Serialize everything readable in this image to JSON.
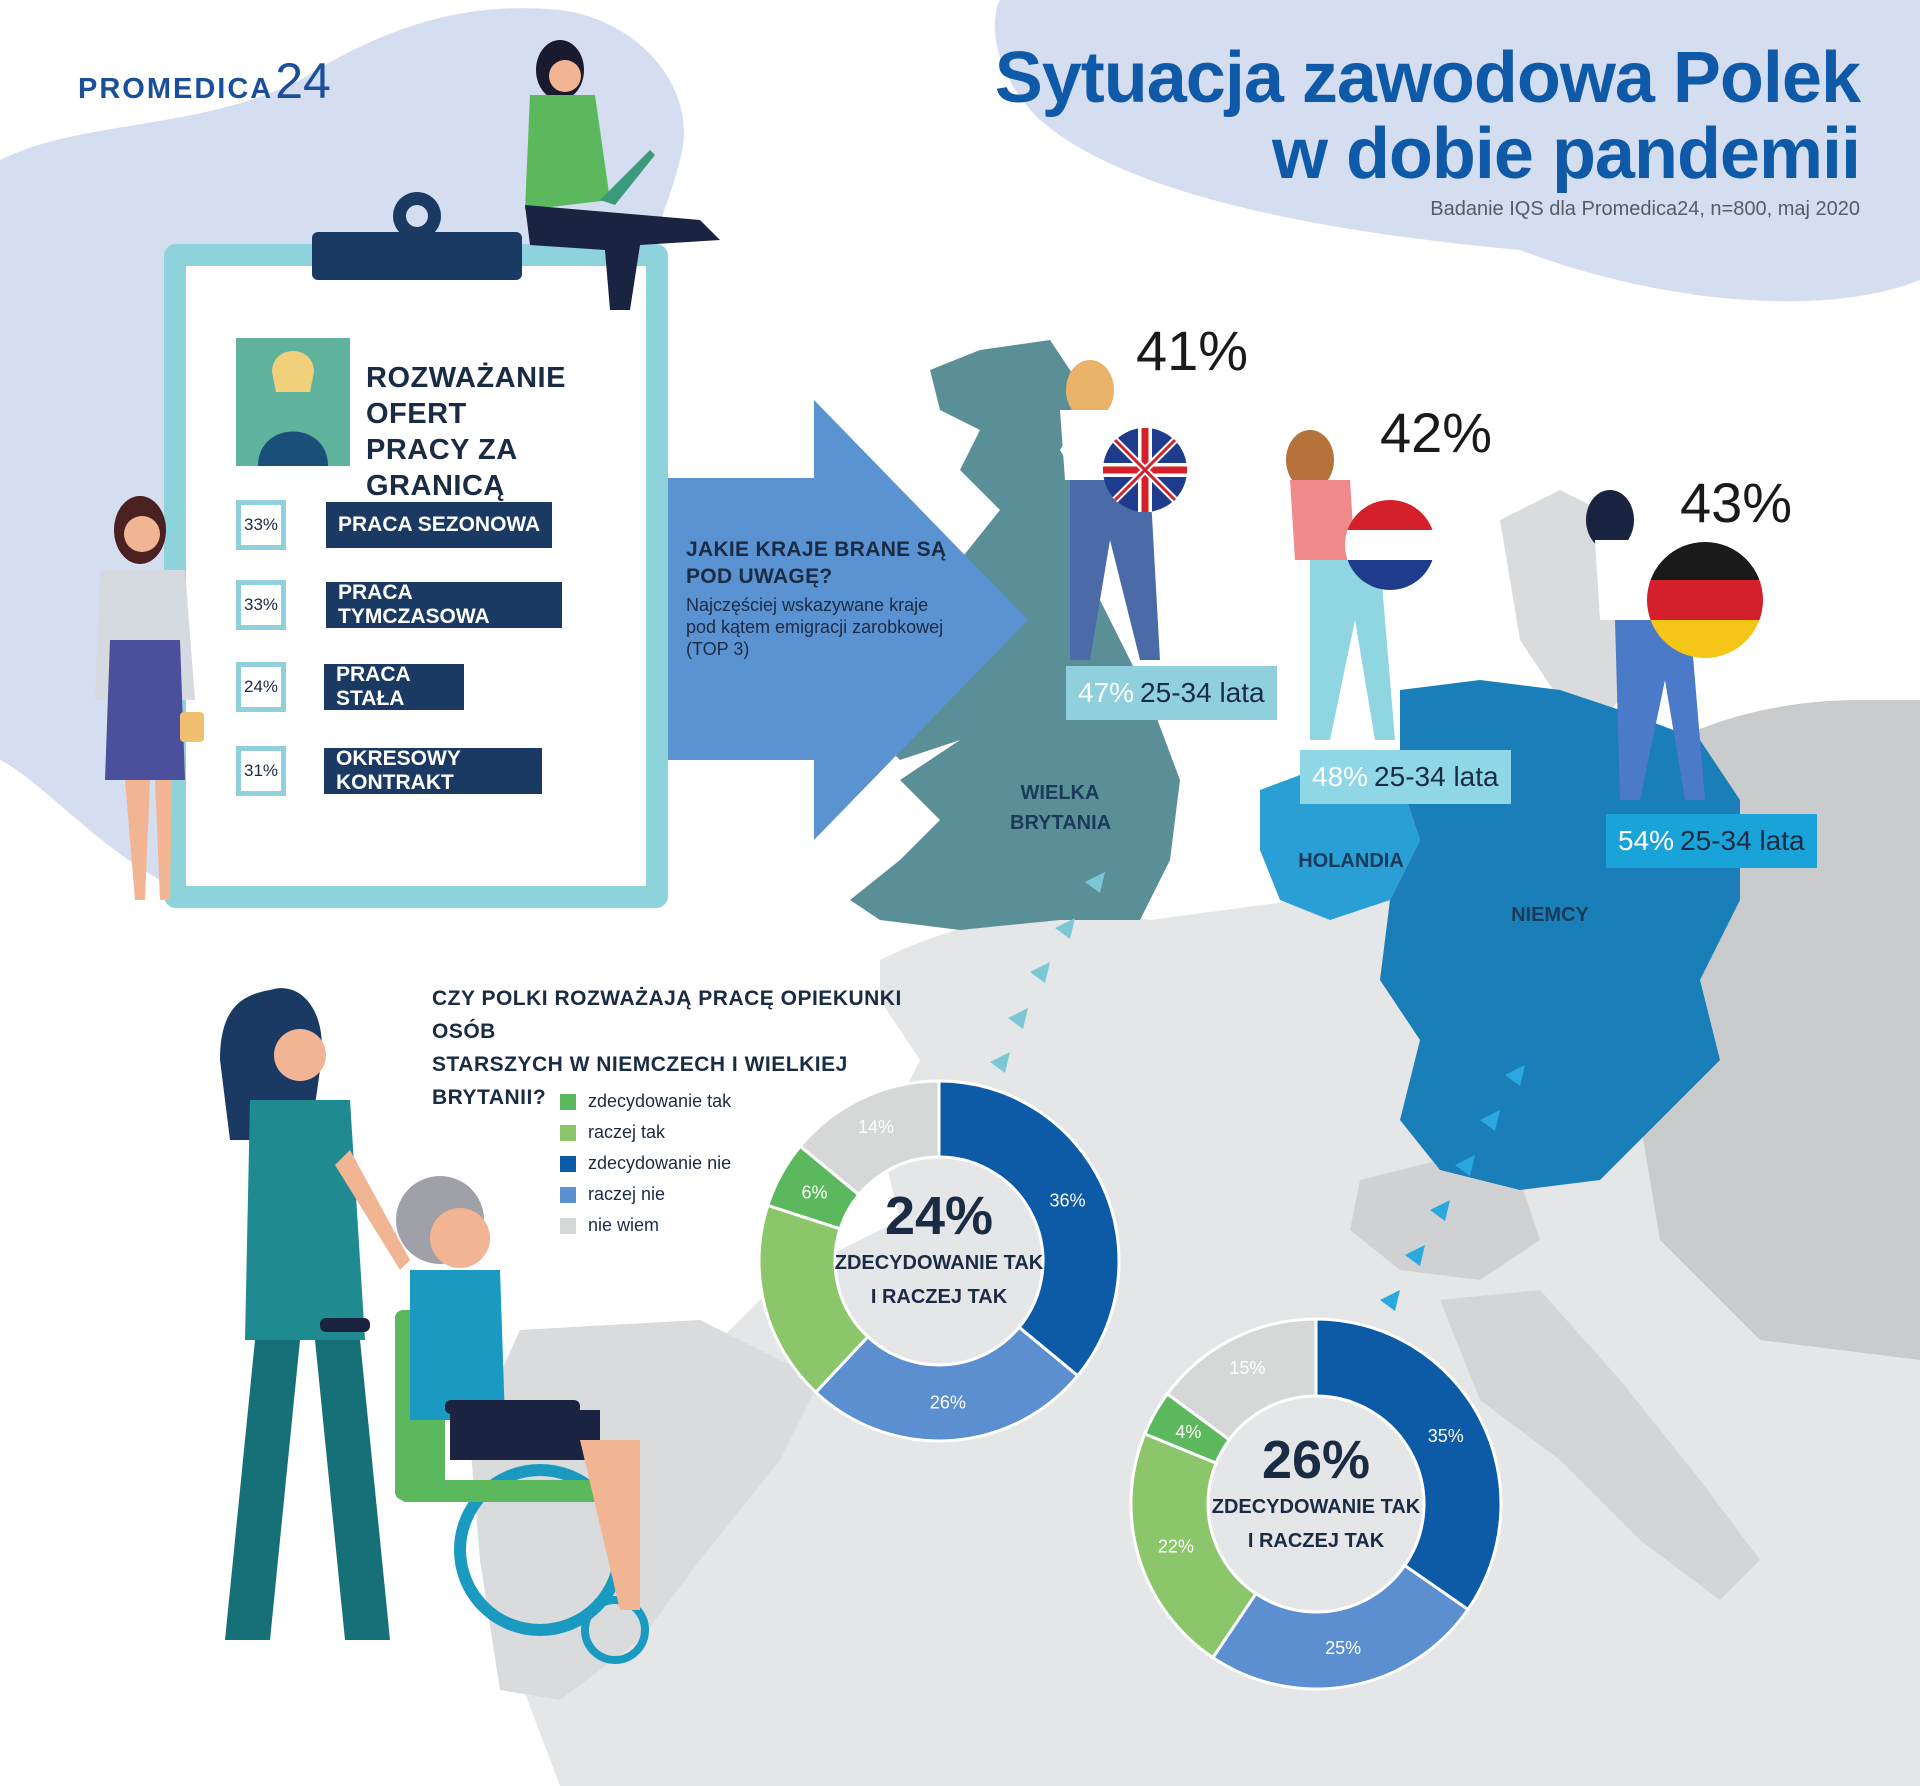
{
  "logo": {
    "word": "PROMEDICA",
    "num": "24"
  },
  "title": {
    "line1": "Sytuacja zawodowa Polek",
    "line2": "w dobie pandemii"
  },
  "subtitle": "Badanie IQS dla Promedica24, n=800, maj 2020",
  "board": {
    "title_line1": "ROZWAŻANIE OFERT",
    "title_line2": "PRACY ZA GRANICĄ",
    "items": [
      {
        "pct": "33%",
        "label": "PRACA SEZONOWA"
      },
      {
        "pct": "33%",
        "label": "PRACA TYMCZASOWA"
      },
      {
        "pct": "24%",
        "label": "PRACA STAŁA"
      },
      {
        "pct": "31%",
        "label": "OKRESOWY KONTRAKT"
      }
    ]
  },
  "arrow": {
    "question_line1": "JAKIE KRAJE BRANE SĄ",
    "question_line2": "POD UWAGĘ?",
    "desc_line1": "Najczęściej wskazywane kraje",
    "desc_line2": "pod kątem emigracji zarobkowej",
    "desc_line3": "(TOP 3)"
  },
  "countries": [
    {
      "name_line1": "WIELKA",
      "name_line2": "BRYTANIA",
      "pct": "41%",
      "age_pct": "47%",
      "age_label": "25-34 lata",
      "tag_color": "#8fd0dc"
    },
    {
      "name_line1": "HOLANDIA",
      "name_line2": "",
      "pct": "42%",
      "age_pct": "48%",
      "age_label": "25-34 lata",
      "tag_color": "#8fd6e6"
    },
    {
      "name_line1": "NIEMCY",
      "name_line2": "",
      "pct": "43%",
      "age_pct": "54%",
      "age_label": "25-34 lata",
      "tag_color": "#1aa3d9"
    }
  ],
  "care_question": {
    "line1": "CZY POLKI ROZWAŻAJĄ PRACĘ OPIEKUNKI OSÓB",
    "line2": "STARSZYCH W NIEMCZECH I WIELKIEJ BRYTANII?"
  },
  "legend": [
    {
      "label": "zdecydowanie tak",
      "color": "#5cb85c"
    },
    {
      "label": "raczej tak",
      "color": "#8cc66a"
    },
    {
      "label": "zdecydowanie nie",
      "color": "#0d5aa7"
    },
    {
      "label": "raczej nie",
      "color": "#5b8fd0"
    },
    {
      "label": "nie wiem",
      "color": "#d6d8d8"
    }
  ],
  "chart_data": [
    {
      "type": "pie",
      "variant": "donut",
      "categories": [
        "zdecydowanie tak",
        "raczej tak",
        "zdecydowanie nie",
        "raczej nie",
        "nie wiem"
      ],
      "values": [
        6,
        18,
        36,
        26,
        14
      ],
      "value_labels": [
        "6%",
        "",
        "36%",
        "26%",
        "14%"
      ],
      "center_value": "24%",
      "center_label_line1": "ZDECYDOWANIE TAK",
      "center_label_line2": "I RACZEJ TAK"
    },
    {
      "type": "pie",
      "variant": "donut",
      "categories": [
        "zdecydowanie tak",
        "raczej tak",
        "zdecydowanie nie",
        "raczej nie",
        "nie wiem"
      ],
      "values": [
        4,
        22,
        35,
        25,
        15
      ],
      "value_labels": [
        "4%",
        "22%",
        "35%",
        "25%",
        "15%"
      ],
      "center_value": "26%",
      "center_label_line1": "ZDECYDOWANIE TAK",
      "center_label_line2": "I RACZEJ TAK"
    }
  ]
}
